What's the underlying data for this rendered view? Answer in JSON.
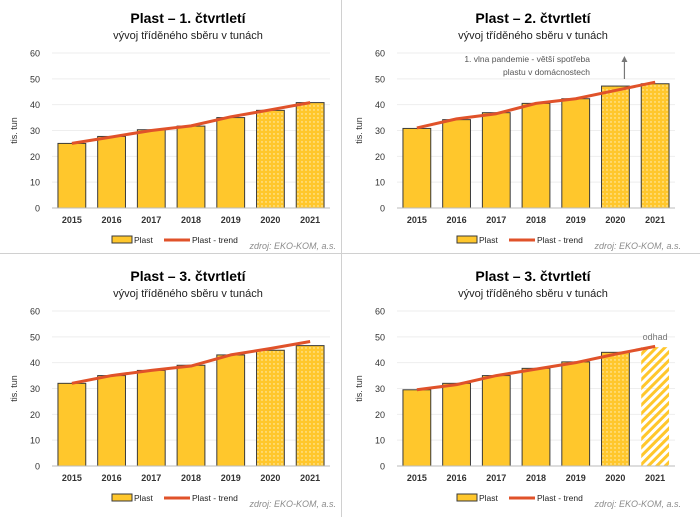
{
  "colors": {
    "bar": "#FFC72C",
    "bar_border": "#3a3a3a",
    "trend": "#E0522A",
    "grid": "#eeeeee",
    "source": "#8c8c8c"
  },
  "chart_data": [
    {
      "type": "bar",
      "title": "Plast – 1. čtvrtletí",
      "subtitle": "vývoj tříděného sběru v tunách",
      "ylabel": "tis. tun",
      "ylim": [
        0,
        60
      ],
      "yticks": [
        "0",
        "10",
        "20",
        "30",
        "40",
        "50",
        "60"
      ],
      "categories": [
        "2015",
        "2016",
        "2017",
        "2018",
        "2019",
        "2020",
        "2021"
      ],
      "series": [
        {
          "name": "Plast",
          "type": "bar",
          "values": [
            25,
            27.7,
            30.3,
            31.7,
            35,
            37.8,
            40.8
          ],
          "patterns": [
            "solid",
            "solid",
            "solid",
            "solid",
            "solid",
            "dotted",
            "dotted"
          ]
        },
        {
          "name": "Plast - trend",
          "type": "line",
          "values": [
            25,
            27.5,
            30,
            31.8,
            35.3,
            38,
            40.8
          ]
        }
      ],
      "source": "zdroj: EKO-KOM, a.s.",
      "annotation": "",
      "grid": true,
      "legend": "bottom"
    },
    {
      "type": "bar",
      "title": "Plast – 2. čtvrtletí",
      "subtitle": "vývoj tříděného sběru v tunách",
      "ylabel": "tis. tun",
      "ylim": [
        0,
        60
      ],
      "yticks": [
        "0",
        "10",
        "20",
        "30",
        "40",
        "50",
        "60"
      ],
      "categories": [
        "2015",
        "2016",
        "2017",
        "2018",
        "2019",
        "2020",
        "2021"
      ],
      "series": [
        {
          "name": "Plast",
          "type": "bar",
          "values": [
            30.8,
            34.2,
            36.9,
            40.5,
            42.3,
            47.2,
            48.1
          ],
          "patterns": [
            "solid",
            "solid",
            "solid",
            "solid",
            "solid",
            "dotted",
            "dotted"
          ]
        },
        {
          "name": "Plast - trend",
          "type": "line",
          "values": [
            31,
            34.5,
            36.5,
            40.5,
            42.3,
            45.5,
            48.7
          ]
        }
      ],
      "source": "zdroj: EKO-KOM, a.s.",
      "annotation": [
        "1. vlna pandemie - větší spotřeba",
        "plastu v domácnostech"
      ],
      "grid": true,
      "legend": "bottom"
    },
    {
      "type": "bar",
      "title": "Plast – 3. čtvrtletí",
      "subtitle": "vývoj tříděného sběru v tunách",
      "ylabel": "tis. tun",
      "ylim": [
        0,
        60
      ],
      "yticks": [
        "0",
        "10",
        "20",
        "30",
        "40",
        "50",
        "60"
      ],
      "categories": [
        "2015",
        "2016",
        "2017",
        "2018",
        "2019",
        "2020",
        "2021"
      ],
      "series": [
        {
          "name": "Plast",
          "type": "bar",
          "values": [
            32,
            35,
            37,
            39,
            43,
            44.8,
            46.6
          ],
          "patterns": [
            "solid",
            "solid",
            "solid",
            "solid",
            "solid",
            "dotted",
            "dotted"
          ]
        },
        {
          "name": "Plast - trend",
          "type": "line",
          "values": [
            32,
            35,
            37,
            38.7,
            43,
            45.5,
            48.2
          ]
        }
      ],
      "source": "zdroj: EKO-KOM, a.s.",
      "annotation": "",
      "grid": true,
      "legend": "bottom"
    },
    {
      "type": "bar",
      "title": "Plast – 3. čtvrtletí",
      "subtitle": "vývoj tříděného sběru v tunách",
      "ylabel": "tis. tun",
      "ylim": [
        0,
        60
      ],
      "yticks": [
        "0",
        "10",
        "20",
        "30",
        "40",
        "50",
        "60"
      ],
      "categories": [
        "2015",
        "2016",
        "2017",
        "2018",
        "2019",
        "2020",
        "2021"
      ],
      "series": [
        {
          "name": "Plast",
          "type": "bar",
          "values": [
            29.5,
            32,
            35,
            37.8,
            40.3,
            44,
            46
          ],
          "patterns": [
            "solid",
            "solid",
            "solid",
            "solid",
            "solid",
            "dotted",
            "striped"
          ]
        },
        {
          "name": "Plast - trend",
          "type": "line",
          "values": [
            29.5,
            31.5,
            35,
            37.5,
            40,
            43.3,
            46.3
          ]
        }
      ],
      "source": "zdroj: EKO-KOM, a.s.",
      "annotation": "odhad",
      "grid": true,
      "legend": "bottom"
    }
  ]
}
